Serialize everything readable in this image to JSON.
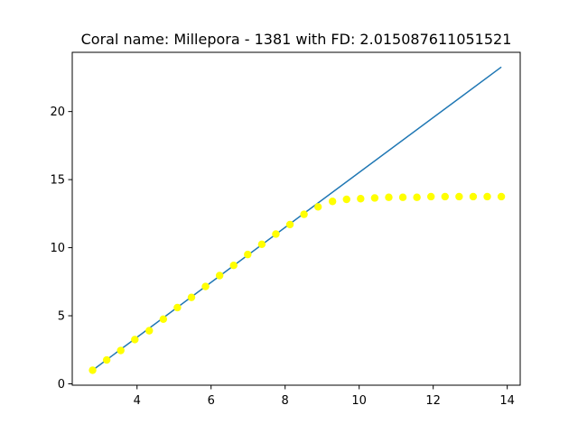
{
  "chart_data": {
    "type": "scatter",
    "title": "Coral name: Millepora - 1381 with FD: 2.015087611051521",
    "xlabel": "",
    "ylabel": "",
    "xlim": [
      2.25,
      14.35
    ],
    "ylim": [
      -0.1,
      24.35
    ],
    "xticks": [
      4,
      6,
      8,
      10,
      12,
      14
    ],
    "yticks": [
      0,
      5,
      10,
      15,
      20
    ],
    "grid": false,
    "legend": "none",
    "series": [
      {
        "kind": "scatter",
        "color": "#ffff00",
        "points": [
          [
            2.8,
            1.0
          ],
          [
            3.18,
            1.75
          ],
          [
            3.56,
            2.45
          ],
          [
            3.94,
            3.25
          ],
          [
            4.33,
            3.9
          ],
          [
            4.71,
            4.75
          ],
          [
            5.09,
            5.6
          ],
          [
            5.47,
            6.35
          ],
          [
            5.85,
            7.15
          ],
          [
            6.23,
            7.95
          ],
          [
            6.61,
            8.7
          ],
          [
            6.99,
            9.5
          ],
          [
            7.37,
            10.25
          ],
          [
            7.75,
            11.0
          ],
          [
            8.13,
            11.7
          ],
          [
            8.51,
            12.45
          ],
          [
            8.89,
            13.0
          ],
          [
            9.28,
            13.4
          ],
          [
            9.66,
            13.55
          ],
          [
            10.04,
            13.6
          ],
          [
            10.42,
            13.65
          ],
          [
            10.8,
            13.7
          ],
          [
            11.18,
            13.7
          ],
          [
            11.56,
            13.7
          ],
          [
            11.94,
            13.75
          ],
          [
            12.32,
            13.75
          ],
          [
            12.7,
            13.75
          ],
          [
            13.08,
            13.75
          ],
          [
            13.46,
            13.75
          ],
          [
            13.84,
            13.75
          ]
        ]
      },
      {
        "kind": "line",
        "color": "#1f77b4",
        "points": [
          [
            2.8,
            1.0
          ],
          [
            13.84,
            23.27
          ]
        ]
      }
    ],
    "colors": {
      "axis": "#000000",
      "background": "#ffffff"
    }
  }
}
